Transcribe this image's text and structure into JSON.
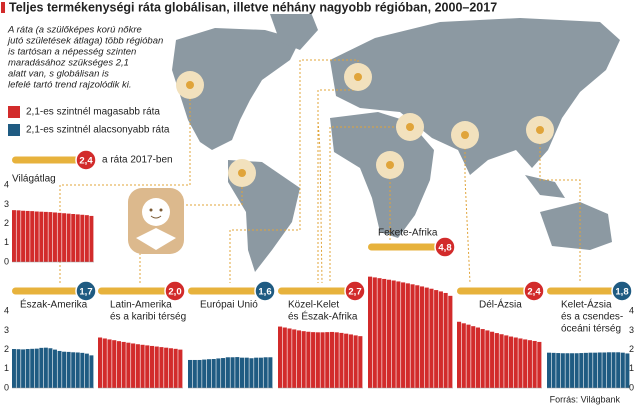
{
  "title": "Teljes termékenységi ráta globálisan, illetve néhány nagyobb régióban, 2000–2017",
  "note": [
    "A ráta (a szülőképes korú nőkre",
    "jutó születések átlaga) több régióban",
    "is tartósan a népesség szinten",
    "maradásához szükséges 2,1",
    "alatt van, s globálisan is",
    "lefelé tartó trend rajzolódik ki."
  ],
  "legend": [
    {
      "name": "2,1-es szintnél magasabb ráta",
      "color": "#d22b2b"
    },
    {
      "name": "2,1-es szintnél alacsonyabb ráta",
      "color": "#1f5b82"
    }
  ],
  "highlight_caption": "a ráta 2017-ben",
  "source": "Forrás: Világbank",
  "chart_data": [
    {
      "type": "bar",
      "name": [
        "Világátlag"
      ],
      "color": "#d22b2b",
      "highlight": {
        "value": 2.4,
        "label": "2,4"
      },
      "ylim": [
        0,
        4
      ],
      "yticks": [
        0,
        1,
        2,
        3,
        4
      ],
      "yaxis_position": "left",
      "values": [
        2.7,
        2.69,
        2.67,
        2.66,
        2.65,
        2.63,
        2.62,
        2.61,
        2.6,
        2.58,
        2.56,
        2.54,
        2.52,
        2.5,
        2.48,
        2.46,
        2.44,
        2.4
      ]
    },
    {
      "type": "bar",
      "name": [
        "Észak-Amerika"
      ],
      "color": "#1f5b82",
      "highlight": {
        "value": 1.7,
        "label": "1,7"
      },
      "ylim": [
        0,
        4
      ],
      "yticks": [
        0,
        1,
        2,
        3,
        4
      ],
      "yaxis_position": "left",
      "values": [
        2.03,
        2.02,
        2.01,
        2.03,
        2.04,
        2.05,
        2.09,
        2.1,
        2.07,
        2.0,
        1.93,
        1.89,
        1.88,
        1.86,
        1.85,
        1.83,
        1.79,
        1.7
      ]
    },
    {
      "type": "bar",
      "name": [
        "Latin-Amerika",
        "és a karibi térség"
      ],
      "color": "#d22b2b",
      "highlight": {
        "value": 2.0,
        "label": "2,0"
      },
      "ylim": [
        0,
        4
      ],
      "values": [
        2.63,
        2.58,
        2.53,
        2.49,
        2.44,
        2.4,
        2.36,
        2.32,
        2.28,
        2.25,
        2.22,
        2.19,
        2.16,
        2.13,
        2.1,
        2.07,
        2.04,
        2.0
      ]
    },
    {
      "type": "bar",
      "name": [
        "Európai Unió"
      ],
      "color": "#1f5b82",
      "highlight": {
        "value": 1.6,
        "label": "1,6"
      },
      "ylim": [
        0,
        4
      ],
      "values": [
        1.46,
        1.46,
        1.46,
        1.48,
        1.5,
        1.51,
        1.54,
        1.56,
        1.6,
        1.6,
        1.61,
        1.58,
        1.58,
        1.55,
        1.58,
        1.58,
        1.6,
        1.6
      ]
    },
    {
      "type": "bar",
      "name": [
        "Közel-Kelet",
        "és Észak-Afrika"
      ],
      "color": "#d22b2b",
      "highlight": {
        "value": 2.7,
        "label": "2,7"
      },
      "ylim": [
        0,
        4
      ],
      "values": [
        3.2,
        3.15,
        3.1,
        3.05,
        3.0,
        2.96,
        2.93,
        2.91,
        2.9,
        2.9,
        2.91,
        2.92,
        2.9,
        2.87,
        2.83,
        2.79,
        2.74,
        2.7
      ]
    },
    {
      "type": "bar",
      "name": [
        "Fekete-Afrika"
      ],
      "color": "#d22b2b",
      "highlight": {
        "value": 4.8,
        "label": "4,8"
      },
      "ylim": [
        0,
        4
      ],
      "values": [
        5.8,
        5.76,
        5.72,
        5.68,
        5.64,
        5.6,
        5.55,
        5.5,
        5.45,
        5.4,
        5.35,
        5.29,
        5.23,
        5.17,
        5.1,
        5.03,
        4.95,
        4.8
      ]
    },
    {
      "type": "bar",
      "name": [
        "Dél-Ázsia"
      ],
      "color": "#d22b2b",
      "highlight": {
        "value": 2.4,
        "label": "2,4"
      },
      "ylim": [
        0,
        4
      ],
      "values": [
        3.45,
        3.37,
        3.3,
        3.22,
        3.15,
        3.07,
        3.0,
        2.93,
        2.86,
        2.8,
        2.74,
        2.68,
        2.63,
        2.58,
        2.53,
        2.49,
        2.45,
        2.4
      ]
    },
    {
      "type": "bar",
      "name": [
        "Kelet-Ázsia",
        "és a csendes-",
        "óceáni térség"
      ],
      "color": "#1f5b82",
      "highlight": {
        "value": 1.8,
        "label": "1,8"
      },
      "ylim": [
        0,
        4
      ],
      "yticks": [
        0,
        1,
        2,
        3,
        4
      ],
      "yaxis_position": "right",
      "values": [
        1.84,
        1.83,
        1.82,
        1.81,
        1.81,
        1.81,
        1.81,
        1.82,
        1.83,
        1.84,
        1.84,
        1.85,
        1.85,
        1.86,
        1.86,
        1.86,
        1.84,
        1.8
      ]
    }
  ]
}
